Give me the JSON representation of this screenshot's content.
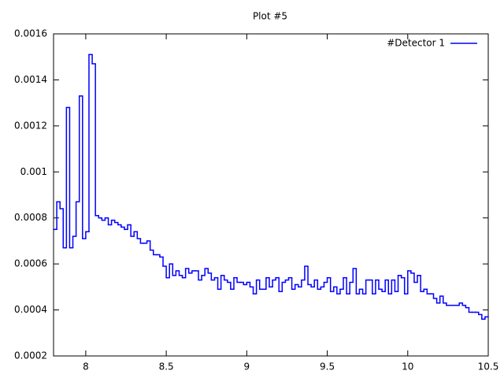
{
  "chart_data": {
    "type": "histogram",
    "title": "Plot #5",
    "series": [
      {
        "name": "#Detector 1",
        "color": "#0000ff",
        "values": [
          0.00075,
          0.00087,
          0.00084,
          0.00067,
          0.00128,
          0.00067,
          0.00072,
          0.00087,
          0.00133,
          0.00071,
          0.00074,
          0.00151,
          0.00147,
          0.00081,
          0.0008,
          0.00079,
          0.0008,
          0.00077,
          0.00079,
          0.00078,
          0.00077,
          0.00076,
          0.00075,
          0.00077,
          0.00072,
          0.00074,
          0.00071,
          0.00069,
          0.00069,
          0.0007,
          0.00066,
          0.00064,
          0.00064,
          0.00063,
          0.00059,
          0.00054,
          0.0006,
          0.00055,
          0.00057,
          0.00055,
          0.00054,
          0.00058,
          0.00056,
          0.00057,
          0.00057,
          0.00053,
          0.00055,
          0.00058,
          0.00056,
          0.00053,
          0.00054,
          0.00049,
          0.00055,
          0.00053,
          0.00052,
          0.00049,
          0.00054,
          0.00052,
          0.00052,
          0.00051,
          0.00052,
          0.0005,
          0.00047,
          0.00053,
          0.00049,
          0.00049,
          0.00054,
          0.0005,
          0.00053,
          0.00054,
          0.00048,
          0.00052,
          0.00053,
          0.00054,
          0.00049,
          0.00051,
          0.0005,
          0.00053,
          0.00059,
          0.00051,
          0.0005,
          0.00053,
          0.00049,
          0.0005,
          0.00052,
          0.00054,
          0.00048,
          0.0005,
          0.00047,
          0.00049,
          0.00054,
          0.00047,
          0.00052,
          0.00058,
          0.00047,
          0.00049,
          0.00047,
          0.00053,
          0.00053,
          0.00047,
          0.00053,
          0.00049,
          0.00048,
          0.00053,
          0.00047,
          0.00053,
          0.00048,
          0.00055,
          0.00054,
          0.00047,
          0.00057,
          0.00056,
          0.00052,
          0.00055,
          0.00048,
          0.00049,
          0.00047,
          0.00047,
          0.00045,
          0.00043,
          0.00046,
          0.00043,
          0.00042,
          0.00042,
          0.00042,
          0.00042,
          0.00043,
          0.00042,
          0.00041,
          0.00039,
          0.00039,
          0.00039,
          0.00038,
          0.00036,
          0.00037
        ]
      }
    ],
    "bins": [
      7.8,
      7.82,
      7.84,
      7.86,
      7.88,
      7.9,
      7.92,
      7.94,
      7.96,
      7.98,
      8,
      8.02,
      8.04,
      8.06,
      8.08,
      8.1,
      8.12,
      8.14,
      8.16,
      8.18,
      8.2,
      8.22,
      8.24,
      8.26,
      8.28,
      8.3,
      8.32,
      8.34,
      8.36,
      8.38,
      8.4,
      8.42,
      8.44,
      8.46,
      8.48,
      8.5,
      8.52,
      8.54,
      8.56,
      8.58,
      8.6,
      8.62,
      8.64,
      8.66,
      8.68,
      8.7,
      8.72,
      8.74,
      8.76,
      8.78,
      8.8,
      8.82,
      8.84,
      8.86,
      8.88,
      8.9,
      8.92,
      8.94,
      8.96,
      8.98,
      9,
      9.02,
      9.04,
      9.06,
      9.08,
      9.1,
      9.12,
      9.14,
      9.16,
      9.18,
      9.2,
      9.22,
      9.24,
      9.26,
      9.28,
      9.3,
      9.32,
      9.34,
      9.36,
      9.38,
      9.4,
      9.42,
      9.44,
      9.46,
      9.48,
      9.5,
      9.52,
      9.54,
      9.56,
      9.58,
      9.6,
      9.62,
      9.64,
      9.66,
      9.68,
      9.7,
      9.72,
      9.74,
      9.76,
      9.78,
      9.8,
      9.82,
      9.84,
      9.86,
      9.88,
      9.9,
      9.92,
      9.94,
      9.96,
      9.98,
      10,
      10.02,
      10.04,
      10.06,
      10.08,
      10.1,
      10.12,
      10.14,
      10.16,
      10.18,
      10.2,
      10.22,
      10.24,
      10.26,
      10.28,
      10.3,
      10.32,
      10.34,
      10.36,
      10.38,
      10.4,
      10.42,
      10.44,
      10.46,
      10.48,
      10.5
    ],
    "xlim": [
      7.8,
      10.5
    ],
    "xticks": [
      8,
      8.5,
      9,
      9.5,
      10,
      10.5
    ],
    "ylim": [
      0.0002,
      0.0016
    ],
    "yticks": [
      0.0002,
      0.0004,
      0.0006,
      0.0008,
      0.001,
      0.0012,
      0.0014,
      0.0016
    ],
    "legend": "top-right"
  }
}
